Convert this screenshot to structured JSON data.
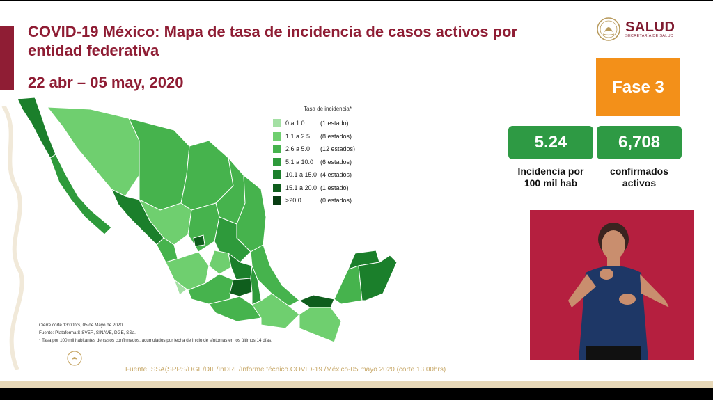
{
  "title": "COVID-19 México: Mapa de tasa de incidencia de casos activos por entidad federativa",
  "date_range": "22 abr – 05 may, 2020",
  "logo": {
    "name": "SALUD",
    "subtitle": "SECRETARÍA DE SALUD"
  },
  "phase": "Fase 3",
  "stats": [
    {
      "value": "5.24",
      "label_line1": "Incidencia por",
      "label_line2": "100 mil hab"
    },
    {
      "value": "6,708",
      "label_line1": "confirmados",
      "label_line2": "activos"
    }
  ],
  "legend": {
    "title": "Tasa de incidencia*",
    "items": [
      {
        "range": "0 a 1.0",
        "count": "(1 estado)",
        "color": "#a4e0a4"
      },
      {
        "range": "1.1 a 2.5",
        "count": "(8 estados)",
        "color": "#6fcf6f"
      },
      {
        "range": "2.6 a 5.0",
        "count": "(12 estados)",
        "color": "#46b34d"
      },
      {
        "range": "5.1 a 10.0",
        "count": "(6 estados)",
        "color": "#2e9a3b"
      },
      {
        "range": "10.1 a 15.0",
        "count": "(4 estados)",
        "color": "#1b7f2b"
      },
      {
        "range": "15.1 a 20.0",
        "count": "(1 estado)",
        "color": "#0f5e1d"
      },
      {
        "range": ">20.0",
        "count": "(0 estados)",
        "color": "#083d12"
      }
    ]
  },
  "notes": {
    "cierre": "Cierre corte 13:00hrs, 05 de Mayo de 2020",
    "fuente": "Fuente: Plataforma SISVER, SINAVE, DGE, SSa.",
    "tasa": "* Tasa por 100 mil habitantes de casos confirmados, acumulados por fecha de inicio de síntomas en los últimos 14 días."
  },
  "source": "Fuente: SSA(SPPS/DGE/DIE/InDRE/Informe técnico.COVID-19 /México-05 mayo 2020 (corte 13:00hrs)",
  "colors": {
    "accent": "#8f1d34",
    "phase": "#f39019",
    "stat": "#2e9a44",
    "video_bg": "#b51f3f"
  }
}
